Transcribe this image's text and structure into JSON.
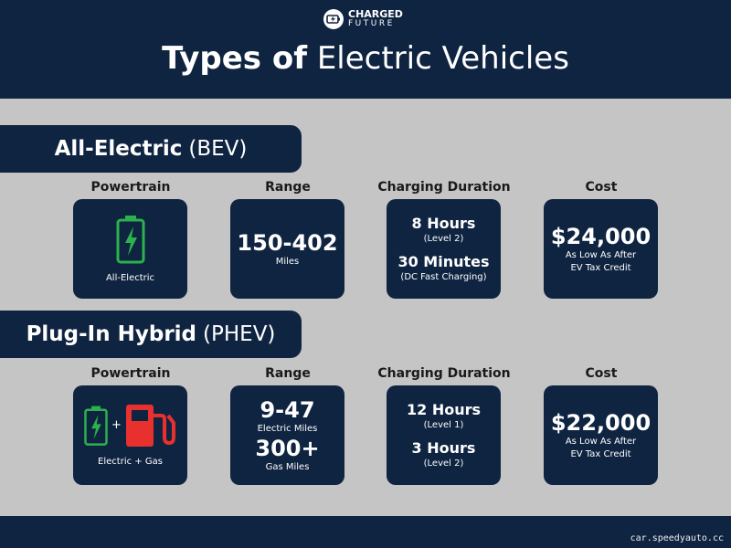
{
  "header": {
    "logo": [
      "CHARGED",
      "FUTURE"
    ],
    "title_bold": "Types of",
    "title_light": "Electric Vehicles"
  },
  "sections": [
    {
      "title_bold": "All-Electric",
      "title_light": "(BEV)",
      "columns": [
        "Powertrain",
        "Range",
        "Charging Duration",
        "Cost"
      ],
      "powertrain": {
        "label": "All-Electric"
      },
      "range": [
        {
          "value": "150-402",
          "unit": "Miles"
        }
      ],
      "charging": [
        {
          "time": "8 Hours",
          "note": "(Level 2)"
        },
        {
          "time": "30 Minutes",
          "note": "(DC Fast Charging)"
        }
      ],
      "cost": {
        "value": "$24,000",
        "note": [
          "As Low As After",
          "EV Tax Credit"
        ]
      }
    },
    {
      "title_bold": "Plug-In Hybrid",
      "title_light": "(PHEV)",
      "columns": [
        "Powertrain",
        "Range",
        "Charging Duration",
        "Cost"
      ],
      "powertrain": {
        "plus": "+",
        "label": "Electric + Gas"
      },
      "range": [
        {
          "value": "9-47",
          "unit": "Electric Miles"
        },
        {
          "value": "300+",
          "unit": "Gas Miles"
        }
      ],
      "charging": [
        {
          "time": "12 Hours",
          "note": "(Level 1)"
        },
        {
          "time": "3 Hours",
          "note": "(Level 2)"
        }
      ],
      "cost": {
        "value": "$22,000",
        "note": [
          "As Low As After",
          "EV Tax Credit"
        ]
      }
    }
  ],
  "watermark": "car.speedyauto.cc"
}
